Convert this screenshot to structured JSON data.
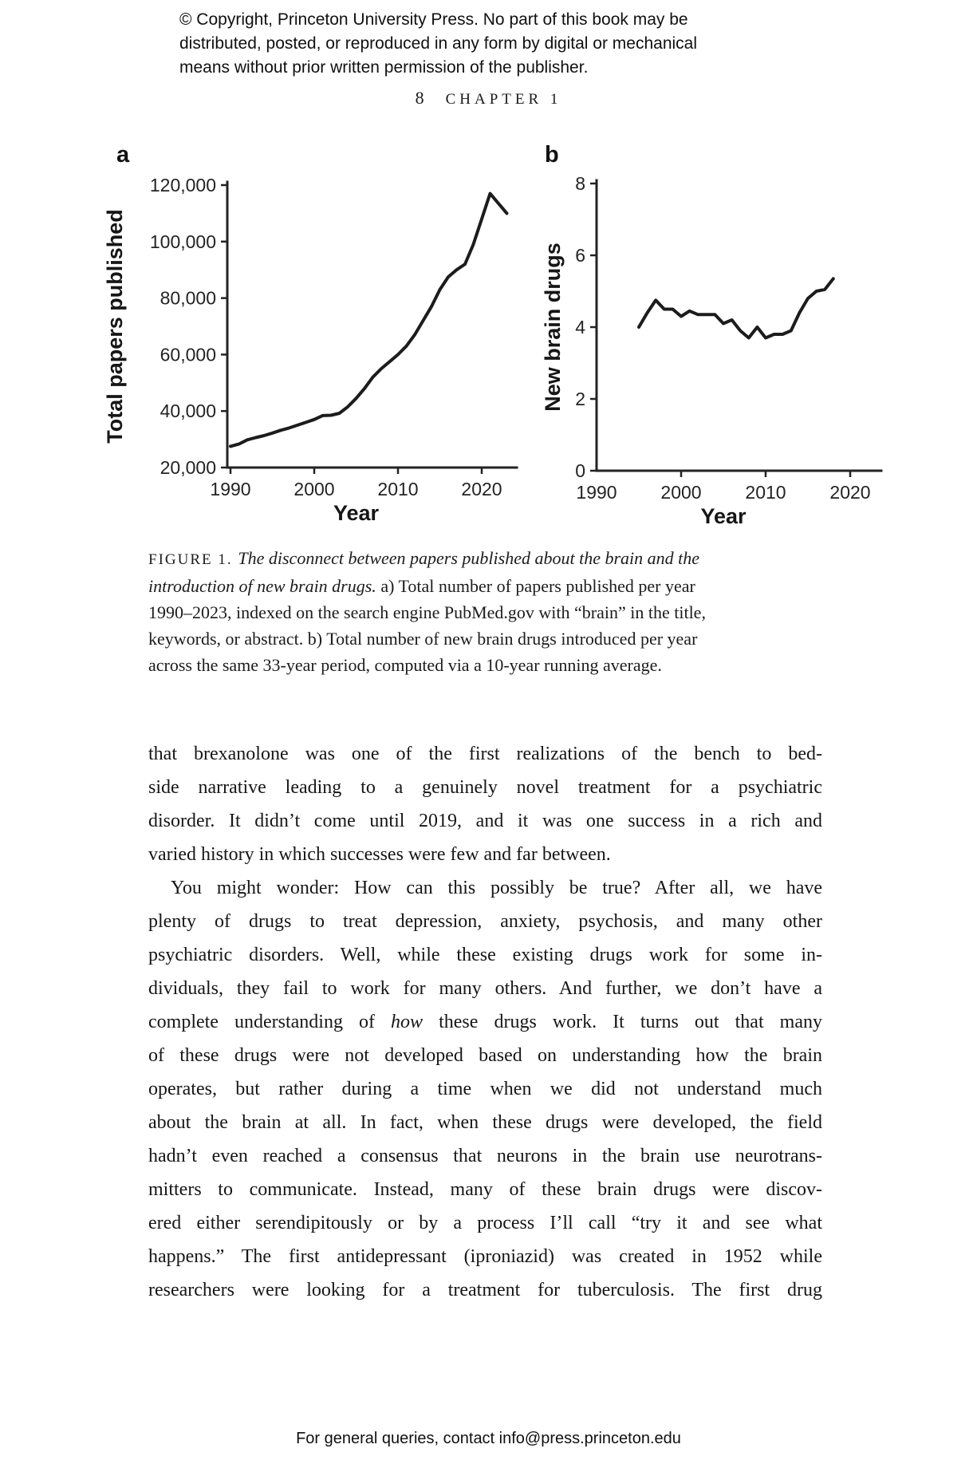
{
  "page": {
    "copyright_lines": [
      "© Copyright, Princeton University Press. No part of this book may be",
      "distributed, posted, or reproduced in any form by digital or mechanical",
      "means without prior written permission of the publisher."
    ],
    "page_number": "8",
    "chapter_header": "CHAPTER 1",
    "footer": "For general queries, contact info@press.princeton.edu"
  },
  "figure": {
    "panel_a_label": "a",
    "panel_b_label": "b"
  },
  "chart_data": [
    {
      "type": "line",
      "panel": "a",
      "title": "",
      "xlabel": "Year",
      "ylabel": "Total papers published",
      "xlim": [
        1990,
        2024
      ],
      "ylim": [
        20000,
        120000
      ],
      "grid": false,
      "xticks": [
        1990,
        2000,
        2010,
        2020
      ],
      "xtick_labels": [
        "1990",
        "2000",
        "2010",
        "2020"
      ],
      "yticks": [
        20000,
        40000,
        60000,
        80000,
        100000,
        120000
      ],
      "ytick_labels": [
        "20,000",
        "40,000",
        "60,000",
        "80,000",
        "100,000",
        "120,000"
      ],
      "x": [
        1990,
        1991,
        1992,
        1993,
        1994,
        1995,
        1996,
        1997,
        1998,
        1999,
        2000,
        2001,
        2002,
        2003,
        2004,
        2005,
        2006,
        2007,
        2008,
        2009,
        2010,
        2011,
        2012,
        2013,
        2014,
        2015,
        2016,
        2017,
        2018,
        2019,
        2020,
        2021,
        2022,
        2023
      ],
      "values": [
        27500,
        28300,
        29800,
        30600,
        31300,
        32200,
        33200,
        34000,
        35000,
        36000,
        37000,
        38400,
        38500,
        39200,
        41500,
        44500,
        48000,
        52000,
        55000,
        57500,
        60000,
        63000,
        67000,
        72000,
        77000,
        83000,
        87500,
        90000,
        92000,
        99000,
        108000,
        117000,
        113500,
        110000
      ]
    },
    {
      "type": "line",
      "panel": "b",
      "title": "",
      "xlabel": "Year",
      "ylabel": "New brain drugs",
      "xlim": [
        1990,
        2024
      ],
      "ylim": [
        0,
        8
      ],
      "grid": false,
      "xticks": [
        1990,
        2000,
        2010,
        2020
      ],
      "xtick_labels": [
        "1990",
        "2000",
        "2010",
        "2020"
      ],
      "yticks": [
        0,
        2,
        4,
        6,
        8
      ],
      "ytick_labels": [
        "0",
        "2",
        "4",
        "6",
        "8"
      ],
      "x": [
        1995,
        1996,
        1997,
        1998,
        1999,
        2000,
        2001,
        2002,
        2003,
        2004,
        2005,
        2006,
        2007,
        2008,
        2009,
        2010,
        2011,
        2012,
        2013,
        2014,
        2015,
        2016,
        2017,
        2018
      ],
      "values": [
        4.0,
        4.4,
        4.75,
        4.5,
        4.5,
        4.3,
        4.45,
        4.35,
        4.35,
        4.35,
        4.1,
        4.2,
        3.9,
        3.7,
        4.0,
        3.7,
        3.8,
        3.8,
        3.9,
        4.4,
        4.8,
        5.0,
        5.05,
        5.35
      ]
    }
  ],
  "caption": {
    "lines": [
      {
        "segments": [
          {
            "text": "FIGURE 1. ",
            "style": "sc"
          },
          {
            "text": "The disconnect between papers published about the brain and the",
            "style": "it"
          }
        ]
      },
      {
        "segments": [
          {
            "text": "introduction of new brain drugs.",
            "style": "it"
          },
          {
            "text": " a) Total number of papers published per year",
            "style": "rm"
          }
        ]
      },
      {
        "segments": [
          {
            "text": "1990–2023, indexed on the search engine PubMed.gov with “brain” in the title,",
            "style": "rm"
          }
        ]
      },
      {
        "segments": [
          {
            "text": "keywords, or abstract. b) Total number of new brain drugs introduced per year",
            "style": "rm"
          }
        ]
      },
      {
        "segments": [
          {
            "text": "across the same 33-year period, computed via a 10-year running average.",
            "style": "rm"
          }
        ]
      }
    ]
  },
  "body": {
    "paragraphs": [
      {
        "indent": false,
        "justify_last": false,
        "lines": [
          "that brexanolone was one of the first realizations of the bench to bed-",
          "side narrative leading to a genuinely novel treatment for a psychiatric",
          "disorder. It didn’t come until 2019, and it was one success in a rich and",
          "varied history in which successes were few and far between."
        ]
      },
      {
        "indent": true,
        "justify_last": true,
        "lines": [
          "You might wonder: How can this possibly be true? After all, we have",
          "plenty of drugs to treat depression, anxiety, psychosis, and many other",
          "psychiatric disorders. Well, while these existing drugs work for some in-",
          "dividuals, they fail to work for many others. And further, we don’t have a",
          {
            "segments": [
              {
                "text": "complete understanding of ",
                "style": "rm"
              },
              {
                "text": "how",
                "style": "it"
              },
              {
                "text": " these drugs work. It turns out that many",
                "style": "rm"
              }
            ]
          },
          "of these drugs were not developed based on understanding how the brain",
          "operates, but rather during a time when we did not understand much",
          "about the brain at all. In fact, when these drugs were developed, the field",
          "hadn’t even reached a consensus that neurons in the brain use neurotrans-",
          "mitters to communicate. Instead, many of these brain drugs were discov-",
          "ered either serendipitously or by a process I’ll call “try it and see what",
          "happens.” The first antidepressant (iproniazid) was created in 1952 while",
          "researchers were looking for a treatment for tuberculosis. The first drug"
        ]
      }
    ]
  }
}
